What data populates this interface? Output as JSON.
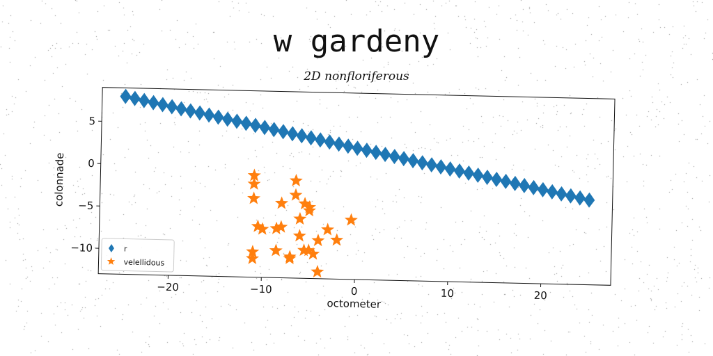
{
  "chart_data": {
    "type": "scatter",
    "title": "w gardeny",
    "subtitle": "2D nonfloriferous",
    "xlabel": "octometer",
    "ylabel": "colonnade",
    "xlim": [
      -27.5,
      27.5
    ],
    "ylim": [
      -13,
      9
    ],
    "xticks": [
      -20,
      -10,
      0,
      10,
      20
    ],
    "xtick_labels": [
      "−20",
      "−10",
      "0",
      "10",
      "20"
    ],
    "yticks": [
      5,
      0,
      -5,
      -10
    ],
    "ytick_labels": [
      "5",
      "0",
      "−5",
      "−10"
    ],
    "grid": false,
    "legend_position": "lower-left",
    "series": [
      {
        "name": "r",
        "marker": "diamond",
        "color": "#1f77b4",
        "x": [
          -25,
          -24,
          -23,
          -22,
          -21,
          -20,
          -19,
          -18,
          -17,
          -16,
          -15,
          -14,
          -13,
          -12,
          -11,
          -10,
          -9,
          -8,
          -7,
          -6,
          -5,
          -4,
          -3,
          -2,
          -1,
          0,
          1,
          2,
          3,
          4,
          5,
          6,
          7,
          8,
          9,
          10,
          11,
          12,
          13,
          14,
          15,
          16,
          17,
          18,
          19,
          20,
          21,
          22,
          23,
          24,
          25
        ],
        "y": [
          8.0,
          7.78,
          7.56,
          7.34,
          7.12,
          6.9,
          6.68,
          6.46,
          6.24,
          6.02,
          5.8,
          5.58,
          5.36,
          5.14,
          4.92,
          4.7,
          4.48,
          4.26,
          4.04,
          3.82,
          3.6,
          3.38,
          3.16,
          2.94,
          2.72,
          2.5,
          2.28,
          2.06,
          1.84,
          1.62,
          1.4,
          1.18,
          0.96,
          0.74,
          0.52,
          0.3,
          0.08,
          -0.14,
          -0.36,
          -0.58,
          -0.8,
          -1.02,
          -1.24,
          -1.46,
          -1.68,
          -1.9,
          -2.12,
          -2.34,
          -2.56,
          -2.78,
          -3.0
        ]
      },
      {
        "name": "velellidous",
        "marker": "star",
        "color": "#ff7f0e",
        "x": [
          -11,
          -11,
          -11,
          -10.5,
          -10,
          -8,
          -8,
          -8.5,
          -11,
          -11,
          -8.5,
          -6.5,
          -6.5,
          -6,
          -5.5,
          -5,
          -5,
          -7,
          -6,
          -5,
          -4,
          -3,
          -0.5,
          -2,
          -5.5,
          -4.5,
          -7,
          -4
        ],
        "y": [
          -1,
          -2,
          -3.7,
          -7,
          -7.3,
          -4.2,
          -7,
          -7.2,
          -10,
          -10.8,
          -9.8,
          -1.5,
          -3.2,
          -6,
          -4.2,
          -4.6,
          -5,
          -10.5,
          -8,
          -9.7,
          -8.5,
          -7.2,
          -6,
          -8.4,
          -9.7,
          -10.1,
          -10.7,
          -12.2
        ]
      }
    ]
  }
}
